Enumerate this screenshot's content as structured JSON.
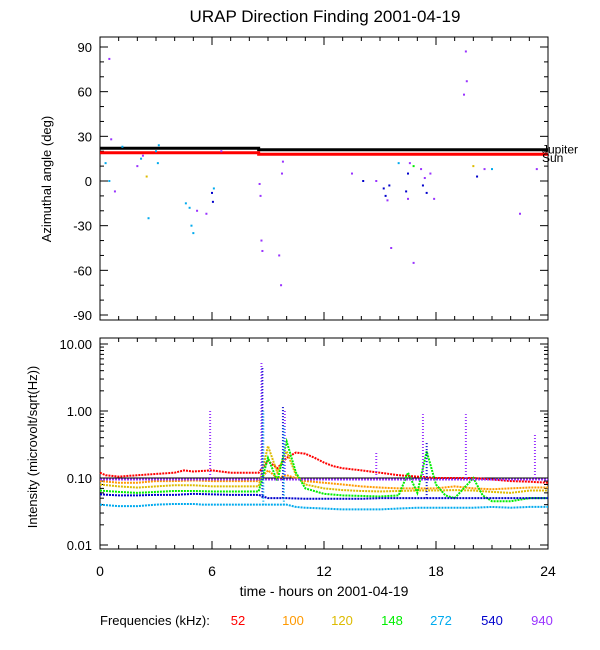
{
  "chart_data": [
    {
      "type": "scatter",
      "title": "URAP Direction Finding  2001-04-19",
      "ylabel": "Azimuthal angle (deg)",
      "xlim": [
        0,
        24
      ],
      "ylim": [
        -90,
        90
      ],
      "yticks": [
        90,
        60,
        30,
        0,
        -30,
        -60,
        -90
      ],
      "reference_lines": [
        {
          "name": "Jupiter",
          "label": "Jupiter",
          "color": "#000000",
          "points": [
            [
              0,
              22
            ],
            [
              8.5,
              22
            ],
            [
              8.5,
              21
            ],
            [
              24,
              21
            ]
          ]
        },
        {
          "name": "Sun",
          "label": "Sun",
          "color": "#ff0000",
          "points": [
            [
              0,
              19
            ],
            [
              8.5,
              19
            ],
            [
              8.5,
              18
            ],
            [
              24,
              18
            ]
          ]
        }
      ],
      "series": [
        {
          "name": "540",
          "color": "#0000cc",
          "points": [
            [
              6.0,
              -8
            ],
            [
              6.05,
              -14
            ],
            [
              14.1,
              0
            ],
            [
              15.2,
              -5
            ],
            [
              15.3,
              -10
            ],
            [
              15.5,
              -3
            ],
            [
              16.4,
              -7
            ],
            [
              16.5,
              5
            ],
            [
              17.3,
              -3
            ],
            [
              17.5,
              -8
            ],
            [
              20.2,
              3
            ]
          ]
        },
        {
          "name": "940",
          "color": "#9933ff",
          "points": [
            [
              0.5,
              82
            ],
            [
              0.6,
              28
            ],
            [
              0.8,
              -7
            ],
            [
              2.0,
              10
            ],
            [
              2.3,
              17
            ],
            [
              5.2,
              -20
            ],
            [
              5.7,
              -22
            ],
            [
              6.5,
              20
            ],
            [
              8.55,
              -2
            ],
            [
              8.6,
              -10
            ],
            [
              8.65,
              -40
            ],
            [
              8.7,
              -47
            ],
            [
              9.6,
              -50
            ],
            [
              9.7,
              -70
            ],
            [
              9.75,
              5
            ],
            [
              9.8,
              13
            ],
            [
              13.5,
              5
            ],
            [
              14.8,
              0
            ],
            [
              15.4,
              -13
            ],
            [
              15.6,
              -45
            ],
            [
              16.5,
              -12
            ],
            [
              16.6,
              12
            ],
            [
              16.8,
              -55
            ],
            [
              17.2,
              8
            ],
            [
              17.4,
              2
            ],
            [
              17.7,
              5
            ],
            [
              17.9,
              -12
            ],
            [
              19.5,
              58
            ],
            [
              19.6,
              87
            ],
            [
              19.65,
              67
            ],
            [
              20.6,
              8
            ],
            [
              22.5,
              -22
            ],
            [
              23.4,
              8
            ]
          ]
        },
        {
          "name": "272",
          "color": "#00aaee",
          "points": [
            [
              0.3,
              12
            ],
            [
              0.5,
              0
            ],
            [
              1.2,
              23
            ],
            [
              2.2,
              15
            ],
            [
              2.6,
              -25
            ],
            [
              3.0,
              20
            ],
            [
              3.1,
              12
            ],
            [
              3.15,
              24
            ],
            [
              4.6,
              -15
            ],
            [
              4.8,
              -18
            ],
            [
              4.9,
              -30
            ],
            [
              5.0,
              -35
            ],
            [
              6.1,
              -5
            ],
            [
              16.0,
              12
            ],
            [
              21.0,
              8
            ]
          ]
        },
        {
          "name": "148",
          "color": "#00ee00",
          "points": [
            [
              16.8,
              10
            ]
          ]
        },
        {
          "name": "120",
          "color": "#ddbb00",
          "points": [
            [
              2.5,
              3
            ],
            [
              20.0,
              10
            ]
          ]
        }
      ]
    },
    {
      "type": "line",
      "xlabel": "time - hours on 2001-04-19",
      "ylabel": "Intensity (microvolt/sqrt(Hz))",
      "xlim": [
        0,
        24
      ],
      "ylim": [
        0.01,
        10
      ],
      "yscale": "log",
      "yticks": [
        10.0,
        1.0,
        0.1,
        0.01
      ],
      "ytick_labels": [
        "10.00",
        "1.00",
        "0.10",
        "0.01"
      ],
      "xticks": [
        0,
        6,
        12,
        18,
        24
      ],
      "xtick_labels": [
        "0",
        "6",
        "12",
        "18",
        "24"
      ],
      "series": [
        {
          "name": "52",
          "color": "#ff0000",
          "x": [
            0,
            0.3,
            1,
            2,
            3,
            4,
            4.5,
            5,
            6,
            7,
            8,
            8.5,
            9,
            9.5,
            10,
            10.5,
            11,
            11.5,
            12,
            12.5,
            13,
            14,
            15,
            16,
            17,
            18,
            19,
            20,
            21,
            22,
            23,
            24
          ],
          "y": [
            0.12,
            0.11,
            0.105,
            0.11,
            0.115,
            0.12,
            0.13,
            0.125,
            0.13,
            0.12,
            0.12,
            0.12,
            0.18,
            0.14,
            0.2,
            0.24,
            0.23,
            0.2,
            0.17,
            0.15,
            0.14,
            0.13,
            0.12,
            0.11,
            0.105,
            0.1,
            0.1,
            0.1,
            0.095,
            0.09,
            0.088,
            0.085
          ]
        },
        {
          "name": "100",
          "color": "#ff9900",
          "x": [
            0,
            1,
            2,
            3,
            4,
            5,
            6,
            7,
            8,
            8.5,
            9,
            9.5,
            10,
            11,
            12,
            13,
            14,
            15,
            16,
            17,
            18,
            19,
            20,
            21,
            22,
            23,
            24
          ],
          "y": [
            0.09,
            0.085,
            0.085,
            0.09,
            0.09,
            0.092,
            0.09,
            0.09,
            0.09,
            0.09,
            0.13,
            0.1,
            0.11,
            0.09,
            0.085,
            0.08,
            0.075,
            0.072,
            0.07,
            0.07,
            0.07,
            0.075,
            0.07,
            0.068,
            0.07,
            0.072,
            0.072
          ]
        },
        {
          "name": "120",
          "color": "#ddbb00",
          "x": [
            0,
            1,
            2,
            3,
            4,
            5,
            6,
            7,
            8,
            8.5,
            9,
            9.5,
            10,
            10.5,
            11,
            12,
            13,
            14,
            15,
            16,
            17,
            18,
            19,
            20,
            21,
            22,
            23,
            24
          ],
          "y": [
            0.08,
            0.075,
            0.072,
            0.075,
            0.078,
            0.078,
            0.075,
            0.075,
            0.075,
            0.075,
            0.3,
            0.12,
            0.25,
            0.11,
            0.08,
            0.07,
            0.066,
            0.064,
            0.063,
            0.064,
            0.065,
            0.065,
            0.066,
            0.065,
            0.062,
            0.06,
            0.065,
            0.065
          ]
        },
        {
          "name": "148",
          "color": "#00ee00",
          "x": [
            0,
            1,
            2,
            3,
            4,
            5,
            6,
            7,
            8,
            8.5,
            9,
            9.5,
            10,
            10.5,
            11,
            12,
            13,
            14,
            15,
            16,
            16.5,
            17,
            17.5,
            18,
            18.5,
            19,
            20,
            20.5,
            21,
            22,
            23,
            24
          ],
          "y": [
            0.065,
            0.062,
            0.06,
            0.062,
            0.064,
            0.064,
            0.063,
            0.063,
            0.063,
            0.063,
            0.2,
            0.09,
            0.35,
            0.12,
            0.07,
            0.058,
            0.055,
            0.054,
            0.053,
            0.055,
            0.12,
            0.06,
            0.25,
            0.08,
            0.055,
            0.05,
            0.1,
            0.055,
            0.045,
            0.045,
            0.05,
            0.05
          ]
        },
        {
          "name": "272",
          "color": "#00aaee",
          "x": [
            0,
            1,
            2,
            3,
            4,
            5,
            5.5,
            6,
            7,
            8,
            8.5,
            9,
            9.5,
            10,
            10.5,
            11,
            12,
            13,
            14,
            15,
            16,
            17,
            18,
            19,
            20,
            21,
            22,
            23,
            24
          ],
          "y": [
            0.04,
            0.038,
            0.038,
            0.04,
            0.041,
            0.041,
            0.04,
            0.04,
            0.04,
            0.04,
            0.04,
            0.04,
            0.04,
            0.04,
            0.037,
            0.036,
            0.035,
            0.034,
            0.034,
            0.034,
            0.035,
            0.036,
            0.036,
            0.036,
            0.036,
            0.037,
            0.036,
            0.037,
            0.037
          ]
        },
        {
          "name": "540",
          "color": "#0000cc",
          "x": [
            0,
            1,
            2,
            3,
            4,
            5,
            6,
            7,
            8,
            8.5,
            9,
            10,
            11,
            12,
            13,
            14,
            15,
            16,
            17,
            18,
            19,
            20,
            21,
            22,
            23,
            24
          ],
          "y": [
            0.057,
            0.055,
            0.055,
            0.056,
            0.056,
            0.058,
            0.057,
            0.056,
            0.056,
            0.056,
            0.05,
            0.05,
            0.049,
            0.049,
            0.049,
            0.049,
            0.05,
            0.05,
            0.05,
            0.05,
            0.05,
            0.05,
            0.05,
            0.05,
            0.05,
            0.05
          ]
        },
        {
          "name": "940",
          "color": "#9933ff",
          "x": [
            0,
            2,
            4,
            6,
            8,
            10,
            12,
            14,
            16,
            18,
            20,
            22,
            24
          ],
          "y": [
            0.095,
            0.095,
            0.095,
            0.095,
            0.095,
            0.095,
            0.095,
            0.095,
            0.095,
            0.095,
            0.095,
            0.095,
            0.095
          ]
        }
      ],
      "bursts": [
        {
          "name": "940",
          "color": "#9933ff",
          "segments": [
            [
              5.9,
              0.1,
              1.0
            ],
            [
              8.65,
              0.1,
              5.5
            ],
            [
              9.9,
              0.1,
              1.0
            ],
            [
              14.8,
              0.1,
              0.25
            ],
            [
              17.3,
              0.1,
              0.9
            ],
            [
              19.6,
              0.1,
              0.9
            ],
            [
              23.3,
              0.1,
              0.45
            ]
          ]
        },
        {
          "name": "540",
          "color": "#0000cc",
          "segments": [
            [
              8.7,
              0.05,
              4.5
            ],
            [
              9.8,
              0.05,
              1.2
            ],
            [
              17.5,
              0.05,
              0.35
            ]
          ]
        },
        {
          "name": "272",
          "color": "#00aaee",
          "segments": [
            [
              8.75,
              0.04,
              1.0
            ],
            [
              9.85,
              0.04,
              0.6
            ]
          ]
        }
      ],
      "horizontal_line": {
        "value": 0.1,
        "color": "#000000"
      }
    }
  ],
  "legend": {
    "title": "Frequencies (kHz):",
    "entries": [
      {
        "label": "52",
        "color": "#ff0000"
      },
      {
        "label": "100",
        "color": "#ff9900"
      },
      {
        "label": "120",
        "color": "#ddbb00"
      },
      {
        "label": "148",
        "color": "#00ee00"
      },
      {
        "label": "272",
        "color": "#00aaee"
      },
      {
        "label": "540",
        "color": "#0000cc"
      },
      {
        "label": "940",
        "color": "#9933ff"
      }
    ]
  }
}
